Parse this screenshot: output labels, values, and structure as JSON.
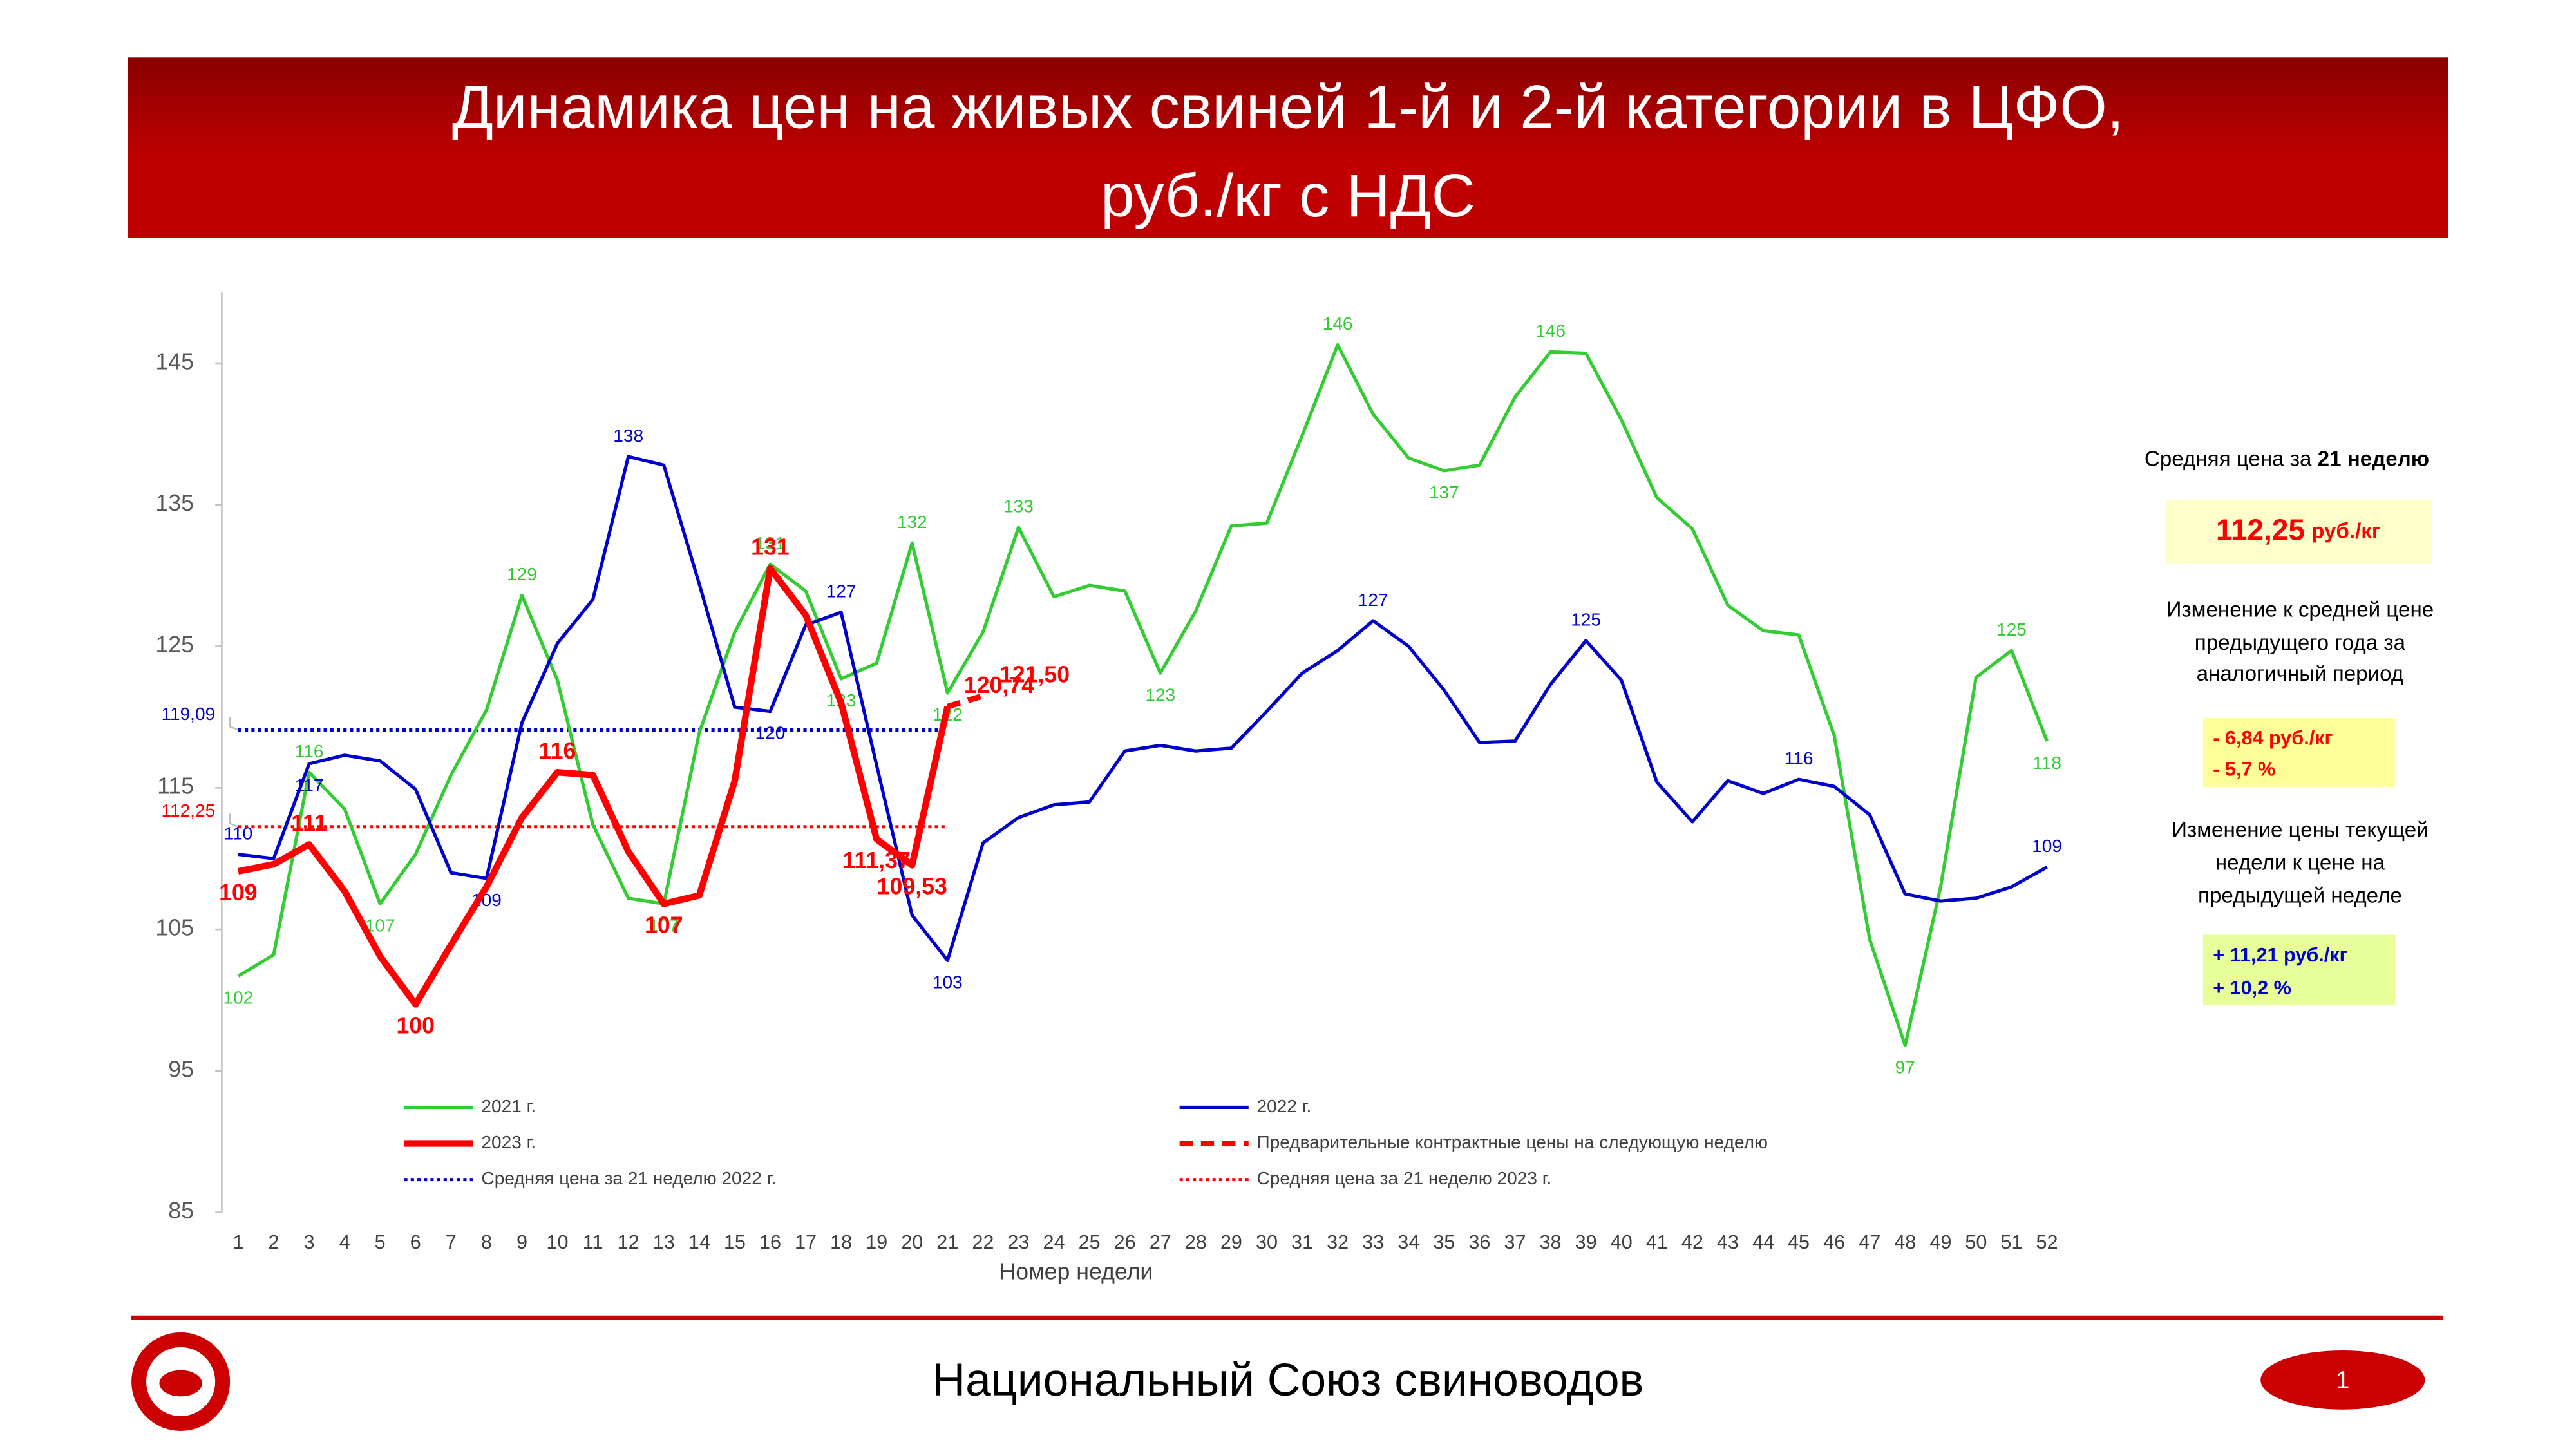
{
  "chart_data": {
    "type": "line",
    "title": [
      "Динамика цен на живых свиней 1-й и 2-й категории в ЦФО,",
      "руб./кг с НДС"
    ],
    "x_label": "Номер недели",
    "categories": [
      "1",
      "2",
      "3",
      "4",
      "5",
      "6",
      "7",
      "8",
      "9",
      "10",
      "11",
      "12",
      "13",
      "14",
      "15",
      "16",
      "17",
      "18",
      "19",
      "20",
      "21",
      "22",
      "23",
      "24",
      "25",
      "26",
      "27",
      "28",
      "29",
      "30",
      "31",
      "32",
      "33",
      "34",
      "35",
      "36",
      "37",
      "38",
      "39",
      "40",
      "41",
      "42",
      "43",
      "44",
      "45",
      "46",
      "47",
      "48",
      "49",
      "50",
      "51",
      "52"
    ],
    "ylim": [
      85,
      150
    ],
    "yticks": [
      85,
      95,
      105,
      115,
      125,
      135,
      145
    ],
    "grid": false,
    "series": [
      {
        "name": "2021 г.",
        "color": "#33cc33",
        "line_style": "solid",
        "values": [
          101.7,
          103.2,
          116.1,
          113.5,
          106.8,
          110.3,
          115.9,
          120.5,
          128.6,
          122.6,
          112.4,
          107.2,
          106.8,
          118.9,
          126,
          130.8,
          128.9,
          122.7,
          123.8,
          132.3,
          121.7,
          126,
          133.4,
          128.5,
          129.3,
          128.9,
          123.1,
          127.5,
          133.5,
          133.7,
          139.9,
          146.3,
          141.4,
          138.3,
          137.4,
          137.8,
          142.6,
          145.8,
          145.7,
          141,
          135.5,
          133.3,
          127.9,
          126.1,
          125.8,
          118.7,
          104.3,
          96.8,
          108,
          122.8,
          124.7,
          118.3
        ],
        "value_labels": [
          "102",
          null,
          "116",
          null,
          "107",
          null,
          null,
          null,
          "129",
          null,
          null,
          null,
          "107",
          null,
          null,
          "131",
          null,
          "123",
          null,
          "132",
          "122",
          null,
          "133",
          null,
          null,
          null,
          "123",
          null,
          null,
          null,
          null,
          "146",
          null,
          null,
          "137",
          null,
          null,
          "146",
          null,
          null,
          null,
          null,
          null,
          null,
          null,
          null,
          null,
          "97",
          null,
          null,
          "125",
          "118"
        ]
      },
      {
        "name": "2022 г.",
        "color": "#0000cc",
        "line_style": "solid",
        "values": [
          110.3,
          110,
          116.7,
          117.3,
          116.9,
          114.9,
          109,
          108.6,
          119.6,
          125.2,
          128.3,
          138.4,
          137.8,
          129.4,
          120.7,
          120.4,
          126.5,
          127.4,
          116.6,
          106,
          102.8,
          111.1,
          112.9,
          113.8,
          114,
          117.6,
          118,
          117.6,
          117.8,
          120.4,
          123.1,
          124.7,
          126.8,
          125,
          121.9,
          118.2,
          118.3,
          122.3,
          125.4,
          122.6,
          115.4,
          112.6,
          115.5,
          114.6,
          115.6,
          115.1,
          113.1,
          107.5,
          107,
          107.2,
          108,
          109.4
        ],
        "value_labels": [
          "110",
          null,
          "117",
          null,
          null,
          null,
          null,
          "109",
          null,
          null,
          null,
          "138",
          null,
          null,
          null,
          "120",
          null,
          "127",
          null,
          null,
          "103",
          null,
          null,
          null,
          null,
          null,
          null,
          null,
          null,
          null,
          null,
          null,
          "127",
          null,
          null,
          null,
          null,
          null,
          "125",
          null,
          null,
          null,
          null,
          null,
          "116",
          null,
          null,
          null,
          null,
          null,
          null,
          "109"
        ]
      },
      {
        "name": "2023 г.",
        "color": "#ff0000",
        "line_style": "bold",
        "values": [
          109.1,
          109.6,
          111,
          107.7,
          103.1,
          99.7,
          103.9,
          108,
          112.9,
          116.1,
          115.9,
          110.5,
          106.8,
          107.4,
          115.5,
          130.5,
          127.2,
          121,
          111.37,
          109.53,
          120.74,
          null,
          null,
          null,
          null,
          null,
          null,
          null,
          null,
          null,
          null,
          null,
          null,
          null,
          null,
          null,
          null,
          null,
          null,
          null,
          null,
          null,
          null,
          null,
          null,
          null,
          null,
          null,
          null,
          null,
          null,
          null
        ],
        "value_labels": [
          "109",
          null,
          "111",
          null,
          null,
          "100",
          null,
          null,
          null,
          "116",
          null,
          null,
          "107",
          null,
          null,
          "131",
          null,
          null,
          "111,37",
          "109,53",
          "120,74",
          null,
          null,
          null,
          null,
          null,
          null,
          null,
          null,
          null,
          null,
          null,
          null,
          null,
          null,
          null,
          null,
          null,
          null,
          null,
          null,
          null,
          null,
          null,
          null,
          null,
          null,
          null,
          null,
          null,
          null,
          null
        ]
      },
      {
        "name": "Предварительные контрактные цены на следующую неделю",
        "color": "#ff0000",
        "line_style": "dashed",
        "values": [
          null,
          null,
          null,
          null,
          null,
          null,
          null,
          null,
          null,
          null,
          null,
          null,
          null,
          null,
          null,
          null,
          null,
          null,
          null,
          null,
          120.74,
          121.5,
          null,
          null,
          null,
          null,
          null,
          null,
          null,
          null,
          null,
          null,
          null,
          null,
          null,
          null,
          null,
          null,
          null,
          null,
          null,
          null,
          null,
          null,
          null,
          null,
          null,
          null,
          null,
          null,
          null,
          null
        ],
        "value_labels": [
          null,
          null,
          null,
          null,
          null,
          null,
          null,
          null,
          null,
          null,
          null,
          null,
          null,
          null,
          null,
          null,
          null,
          null,
          null,
          null,
          null,
          "121,50",
          null,
          null,
          null,
          null,
          null,
          null,
          null,
          null,
          null,
          null,
          null,
          null,
          null,
          null,
          null,
          null,
          null,
          null,
          null,
          null,
          null,
          null,
          null,
          null,
          null,
          null,
          null,
          null,
          null,
          null
        ]
      }
    ],
    "reference_lines": [
      {
        "name": "Средняя цена за 21 неделю 2022 г.",
        "value": 119.09,
        "label": "119,09",
        "color": "#0000cc",
        "from": "1",
        "to": "21"
      },
      {
        "name": "Средняя цена за 21 неделю 2023 г.",
        "value": 112.25,
        "label": "112,25",
        "color": "#ff0000",
        "from": "1",
        "to": "21"
      }
    ]
  },
  "side_panel": {
    "avg_title": "Средняя цена за ",
    "avg_title_bold": "21 неделю",
    "avg_value": "112,25",
    "avg_unit": "руб./кг",
    "year_change_title": [
      "Изменение к средней цене",
      "предыдущего года за",
      "аналогичный период"
    ],
    "year_change": [
      "- 6,84 руб./кг",
      "- 5,7 %"
    ],
    "week_change_title": [
      "Изменение цены текущей",
      "недели к цене на",
      "предыдущей неделе"
    ],
    "week_change": [
      "+ 11,21 руб./кг",
      "+ 10,2 %"
    ]
  },
  "footer": {
    "organization": "Национальный Союз свиноводов",
    "page": "1"
  }
}
